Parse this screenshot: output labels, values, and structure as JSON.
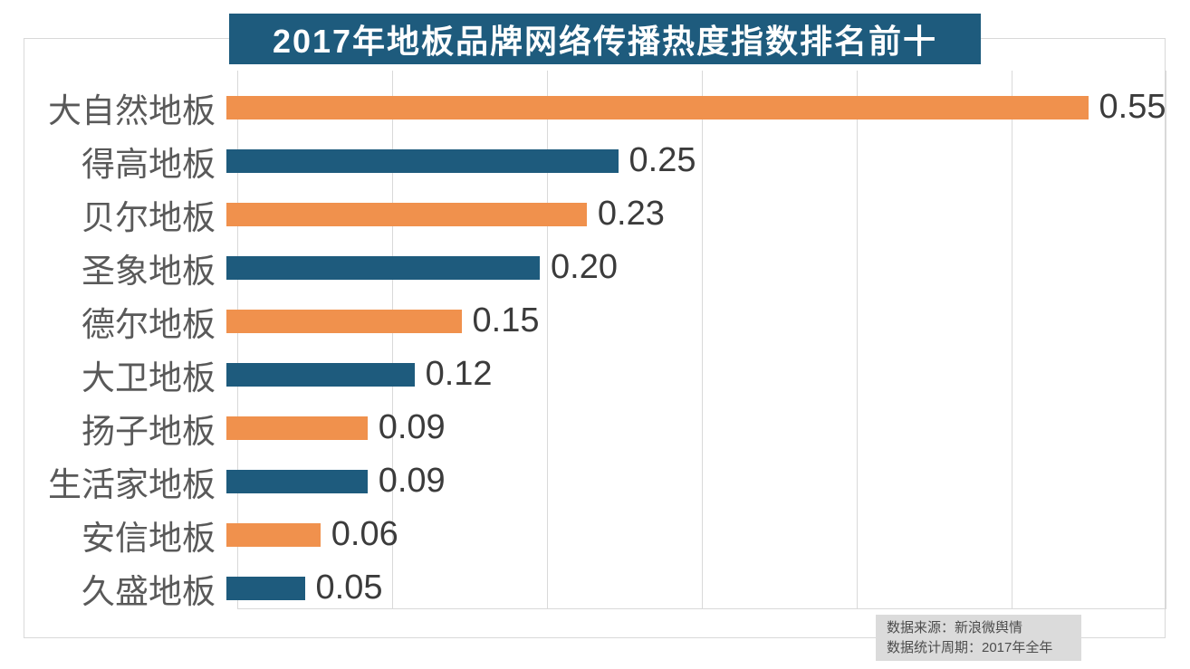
{
  "chart_data": {
    "type": "bar",
    "orientation": "horizontal",
    "title": "2017年地板品牌网络传播热度指数排名前十",
    "categories": [
      "大自然地板",
      "得高地板",
      "贝尔地板",
      "圣象地板",
      "德尔地板",
      "大卫地板",
      "扬子地板",
      "生活家地板",
      "安信地板",
      "久盛地板"
    ],
    "values": [
      0.55,
      0.25,
      0.23,
      0.2,
      0.15,
      0.12,
      0.09,
      0.09,
      0.06,
      0.05
    ],
    "value_labels": [
      "0.55",
      "0.25",
      "0.23",
      "0.20",
      "0.15",
      "0.12",
      "0.09",
      "0.09",
      "0.06",
      "0.05"
    ],
    "xlim": [
      0,
      0.6
    ],
    "gridline_step": 0.1,
    "grid": true,
    "legend": false,
    "bar_colors_alternating": [
      "#f0914d",
      "#1e5b7d"
    ]
  },
  "footer": {
    "line1": "数据来源：新浪微舆情",
    "line2": "数据统计周期：2017年全年"
  },
  "colors": {
    "title_bg": "#1e5b7d",
    "title_text": "#ffffff",
    "orange": "#f0914d",
    "blue": "#1e5b7d",
    "grid": "#d9d9d9",
    "category_text": "#595959",
    "value_text": "#3b3b3b",
    "footer_bg": "#dbdbdb",
    "footer_text": "#4d4d4d"
  }
}
